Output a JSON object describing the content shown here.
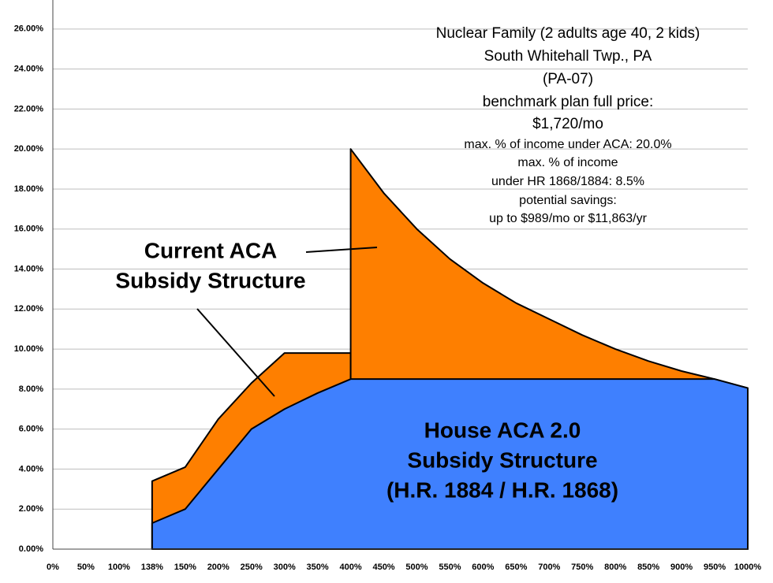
{
  "chart_data": {
    "type": "area",
    "annotations": [
      "Nuclear Family (2 adults age 40, 2 kids)",
      "South Whitehall Twp., PA",
      "(PA-07)",
      "benchmark plan full price:",
      "$1,720/mo",
      "max. % of income under ACA: 20.0%",
      "max. % of income",
      "under HR 1868/1884: 8.5%",
      "potential savings:",
      "up to $989/mo or $11,863/yr",
      "Current ACA",
      "Subsidy Structure",
      "House ACA 2.0",
      "Subsidy Structure",
      "(H.R. 1884 / H.R. 1868)"
    ],
    "categories": [
      "0%",
      "50%",
      "100%",
      "138%",
      "150%",
      "200%",
      "250%",
      "300%",
      "350%",
      "400%",
      "450%",
      "500%",
      "550%",
      "600%",
      "650%",
      "700%",
      "750%",
      "800%",
      "850%",
      "900%",
      "950%",
      "1000%"
    ],
    "series": [
      {
        "color": "#fe7f00",
        "values": [
          null,
          null,
          null,
          3.4,
          4.1,
          6.5,
          8.3,
          9.8,
          9.8,
          9.8,
          null,
          null,
          null,
          null,
          null,
          null,
          null,
          null,
          null,
          null,
          null,
          null
        ]
      },
      {
        "color": "#fe7f00",
        "values": [
          null,
          null,
          null,
          null,
          null,
          null,
          null,
          null,
          null,
          20.0,
          17.8,
          16.0,
          14.5,
          13.3,
          12.3,
          11.5,
          10.7,
          10.0,
          9.4,
          8.9,
          8.5,
          8.05
        ]
      },
      {
        "color": "#3f80fe",
        "values": [
          null,
          null,
          null,
          1.3,
          2.0,
          4.0,
          6.0,
          7.0,
          7.8,
          8.5,
          8.5,
          8.5,
          8.5,
          8.5,
          8.5,
          8.5,
          8.5,
          8.5,
          8.5,
          8.5,
          8.5,
          8.05
        ]
      }
    ],
    "ylim": [
      0,
      27.45
    ],
    "yticks": [
      {
        "value": 0,
        "label": "0.00%"
      },
      {
        "value": 2,
        "label": "2.00%"
      },
      {
        "value": 4,
        "label": "4.00%"
      },
      {
        "value": 6,
        "label": "6.00%"
      },
      {
        "value": 8,
        "label": "8.00%"
      },
      {
        "value": 10,
        "label": "10.00%"
      },
      {
        "value": 12,
        "label": "12.00%"
      },
      {
        "value": 14,
        "label": "14.00%"
      },
      {
        "value": 16,
        "label": "16.00%"
      },
      {
        "value": 18,
        "label": "18.00%"
      },
      {
        "value": 20,
        "label": "20.00%"
      },
      {
        "value": 22,
        "label": "22.00%"
      },
      {
        "value": 24,
        "label": "24.00%"
      },
      {
        "value": 26,
        "label": "26.00%"
      }
    ],
    "grid": true
  }
}
